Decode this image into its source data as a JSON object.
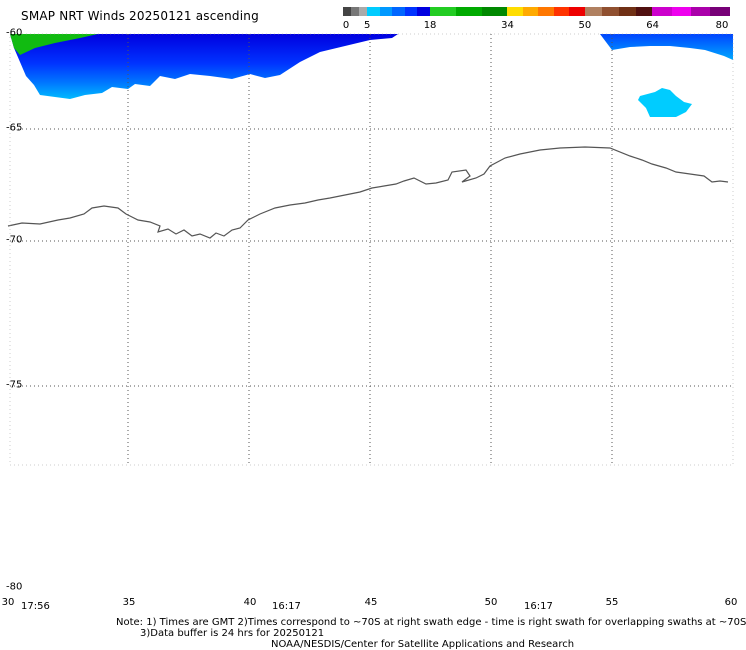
{
  "title": "SMAP NRT Winds 20250121 ascending",
  "colorbar": {
    "ticks": [
      "0",
      "5",
      "18",
      "34",
      "50",
      "64",
      "80"
    ],
    "segments": [
      {
        "from": 0,
        "to": 5,
        "colors": [
          "#444444",
          "#777777",
          "#aaaaaa"
        ]
      },
      {
        "from": 5,
        "to": 18,
        "colors": [
          "#00ccff",
          "#0099ff",
          "#0066ff",
          "#0033ff",
          "#0000e0"
        ]
      },
      {
        "from": 18,
        "to": 34,
        "colors": [
          "#22cc22",
          "#00aa00",
          "#008800"
        ]
      },
      {
        "from": 34,
        "to": 50,
        "colors": [
          "#ffdd00",
          "#ffaa00",
          "#ff7700",
          "#ff3300",
          "#ee0000"
        ]
      },
      {
        "from": 50,
        "to": 64,
        "colors": [
          "#b08060",
          "#905030",
          "#703015",
          "#501010"
        ]
      },
      {
        "from": 64,
        "to": 80,
        "colors": [
          "#cc00cc",
          "#ee00ee",
          "#aa00aa",
          "#770077"
        ]
      }
    ]
  },
  "axes": {
    "lat_labels": [
      "-60",
      "-65",
      "-70",
      "-75",
      "-80"
    ],
    "lon_labels": [
      "30",
      "35",
      "40",
      "45",
      "50",
      "55",
      "60"
    ],
    "time_labels": [
      "17:56",
      "16:17",
      "16:17"
    ],
    "grid": true
  },
  "legend_colors": {
    "coast": "#555555",
    "grid": "#555555"
  },
  "notes": {
    "line1": "Note: 1) Times are GMT 2)Times correspond to ~70S at right swath edge - time is right swath for overlapping swaths at ~70S",
    "line2": "3)Data buffer is 24 hrs for 20250121",
    "line3": "NOAA/NESDIS/Center for Satellite Applications and Research"
  }
}
